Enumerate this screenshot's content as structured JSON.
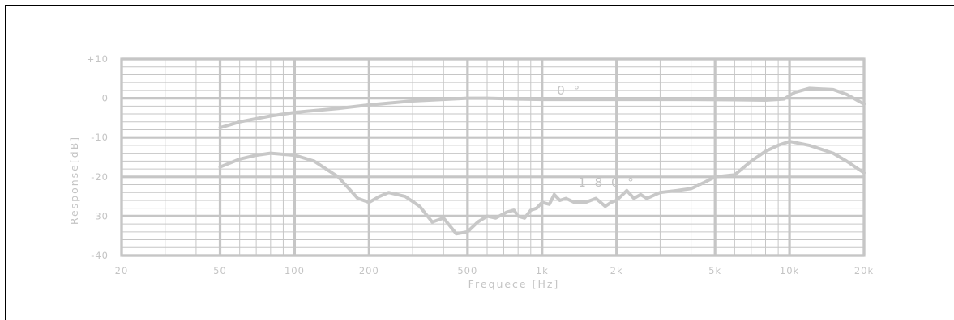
{
  "chart_data": {
    "type": "line",
    "title": "",
    "xlabel": "Frequece [Hz]",
    "ylabel": "Response[dB]",
    "x_scale": "log",
    "xlim": [
      20,
      20000
    ],
    "ylim": [
      -40,
      10
    ],
    "grid": true,
    "x_ticks": [
      {
        "value": 20,
        "label": "20"
      },
      {
        "value": 50,
        "label": "50"
      },
      {
        "value": 100,
        "label": "100"
      },
      {
        "value": 200,
        "label": "200"
      },
      {
        "value": 500,
        "label": "500"
      },
      {
        "value": 1000,
        "label": "1k"
      },
      {
        "value": 2000,
        "label": "2k"
      },
      {
        "value": 5000,
        "label": "5k"
      },
      {
        "value": 10000,
        "label": "10k"
      },
      {
        "value": 20000,
        "label": "20k"
      }
    ],
    "y_ticks": [
      {
        "value": 10,
        "label": "+10"
      },
      {
        "value": 0,
        "label": "0"
      },
      {
        "value": -10,
        "label": "-10"
      },
      {
        "value": -20,
        "label": "-20"
      },
      {
        "value": -30,
        "label": "-30"
      },
      {
        "value": -40,
        "label": "-40"
      }
    ],
    "series": [
      {
        "name": "0 °",
        "label_at": [
          1150,
          2
        ],
        "points": [
          [
            50,
            -7.5
          ],
          [
            60,
            -6
          ],
          [
            70,
            -5.2
          ],
          [
            80,
            -4.5
          ],
          [
            100,
            -3.6
          ],
          [
            150,
            -2.6
          ],
          [
            200,
            -1.7
          ],
          [
            300,
            -0.7
          ],
          [
            500,
            0
          ],
          [
            600,
            0
          ],
          [
            800,
            -0.2
          ],
          [
            1000,
            -0.3
          ],
          [
            2000,
            -0.3
          ],
          [
            4000,
            -0.3
          ],
          [
            6000,
            -0.4
          ],
          [
            8000,
            -0.5
          ],
          [
            9500,
            -0.2
          ],
          [
            10500,
            1.5
          ],
          [
            12000,
            2.5
          ],
          [
            15000,
            2.2
          ],
          [
            17000,
            1
          ],
          [
            20000,
            -1.5
          ]
        ]
      },
      {
        "name": "1 8 0 °",
        "label_at": [
          1400,
          -21.5
        ],
        "points": [
          [
            50,
            -17.5
          ],
          [
            60,
            -15.5
          ],
          [
            70,
            -14.5
          ],
          [
            80,
            -14
          ],
          [
            100,
            -14.5
          ],
          [
            120,
            -16
          ],
          [
            150,
            -20
          ],
          [
            180,
            -25.5
          ],
          [
            200,
            -26.5
          ],
          [
            220,
            -25
          ],
          [
            240,
            -24
          ],
          [
            280,
            -25
          ],
          [
            320,
            -27.5
          ],
          [
            360,
            -31.5
          ],
          [
            400,
            -30.5
          ],
          [
            450,
            -34.5
          ],
          [
            500,
            -34
          ],
          [
            550,
            -31.5
          ],
          [
            600,
            -30
          ],
          [
            650,
            -30.5
          ],
          [
            720,
            -29
          ],
          [
            770,
            -28.5
          ],
          [
            800,
            -30
          ],
          [
            850,
            -30.5
          ],
          [
            900,
            -28.5
          ],
          [
            950,
            -28
          ],
          [
            1000,
            -26.5
          ],
          [
            1070,
            -27
          ],
          [
            1120,
            -24.5
          ],
          [
            1180,
            -26
          ],
          [
            1250,
            -25.5
          ],
          [
            1350,
            -26.5
          ],
          [
            1500,
            -26.5
          ],
          [
            1650,
            -25.5
          ],
          [
            1800,
            -27.5
          ],
          [
            1900,
            -26.5
          ],
          [
            2000,
            -26
          ],
          [
            2200,
            -23.5
          ],
          [
            2350,
            -25.5
          ],
          [
            2500,
            -24.5
          ],
          [
            2650,
            -25.5
          ],
          [
            3000,
            -24
          ],
          [
            3500,
            -23.5
          ],
          [
            4000,
            -23
          ],
          [
            4500,
            -21.5
          ],
          [
            5000,
            -20
          ],
          [
            6000,
            -19.5
          ],
          [
            7000,
            -16
          ],
          [
            8000,
            -13.5
          ],
          [
            9000,
            -12
          ],
          [
            10000,
            -11
          ],
          [
            12000,
            -12
          ],
          [
            15000,
            -14
          ],
          [
            17000,
            -16
          ],
          [
            20000,
            -19
          ]
        ]
      }
    ]
  }
}
